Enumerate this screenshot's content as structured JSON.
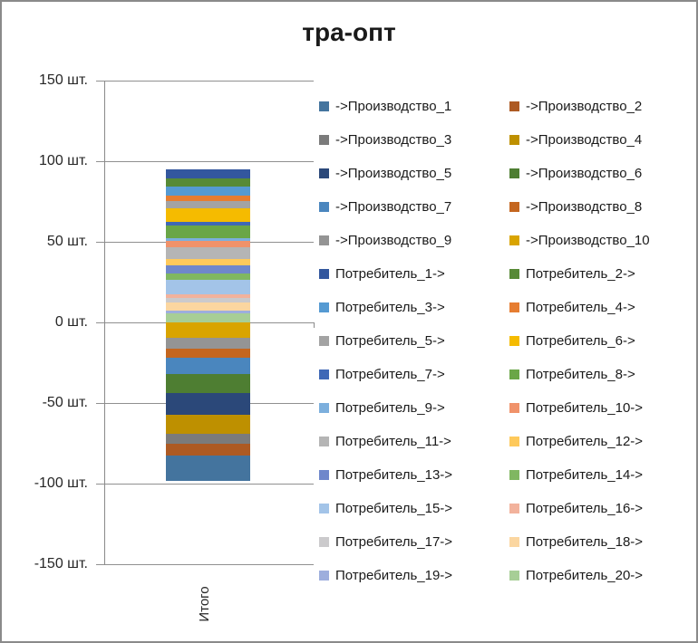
{
  "colors": {
    "border": "#8A8A8A",
    "gridline": "#909090",
    "axis": "#8A8A8A",
    "text": "#262626",
    "title_text": "#1A1A1A"
  },
  "y_axis": {
    "ticks": [
      "150 шт.",
      "100 шт.",
      "50 шт.",
      "0 шт.",
      "-50 шт.",
      "-100 шт.",
      "-150 шт."
    ]
  },
  "chart_data": {
    "type": "bar",
    "stacked": true,
    "title": "тра-опт",
    "categories": [
      "Итого"
    ],
    "xlabel": "",
    "ylabel": "",
    "value_unit": "шт.",
    "ylim": [
      -150,
      150
    ],
    "ytick_step": 50,
    "grid": true,
    "legend_position": "right",
    "legend_columns": 2,
    "series": [
      {
        "name": "->Производство_1",
        "color": "#44749E",
        "value": -16
      },
      {
        "name": "->Производство_2",
        "color": "#AD5A23",
        "value": -7
      },
      {
        "name": "->Производство_3",
        "color": "#7B7B7B",
        "value": -6.5
      },
      {
        "name": "->Производство_4",
        "color": "#BE9000",
        "value": -11.5
      },
      {
        "name": "->Производство_5",
        "color": "#2B4879",
        "value": -13.5
      },
      {
        "name": "->Производство_6",
        "color": "#4E7E32",
        "value": -12
      },
      {
        "name": "->Производство_7",
        "color": "#4A86BE",
        "value": -10
      },
      {
        "name": "->Производство_8",
        "color": "#C4661F",
        "value": -5.5
      },
      {
        "name": "->Производство_9",
        "color": "#949494",
        "value": -7
      },
      {
        "name": "->Производство_10",
        "color": "#D9A400",
        "value": -9.5
      },
      {
        "name": "Потребитель_1->",
        "color": "#33579E",
        "value": 5.5
      },
      {
        "name": "Потребитель_2->",
        "color": "#578A36",
        "value": 5.5
      },
      {
        "name": "Потребитель_3->",
        "color": "#559AD2",
        "value": 5.5
      },
      {
        "name": "Потребитель_4->",
        "color": "#E67D31",
        "value": 3.5
      },
      {
        "name": "Потребитель_5->",
        "color": "#A3A3A3",
        "value": 4
      },
      {
        "name": "Потребитель_6->",
        "color": "#F5BB00",
        "value": 8.5
      },
      {
        "name": "Потребитель_7->",
        "color": "#3F68B6",
        "value": 2.5
      },
      {
        "name": "Потребитель_8->",
        "color": "#6AA647",
        "value": 8
      },
      {
        "name": "Потребитель_9->",
        "color": "#7CAFDD",
        "value": 1.5
      },
      {
        "name": "Потребитель_10->",
        "color": "#F0926A",
        "value": 4
      },
      {
        "name": "Потребитель_11->",
        "color": "#B5B5B5",
        "value": 7
      },
      {
        "name": "Потребитель_12->",
        "color": "#FEC95B",
        "value": 4
      },
      {
        "name": "Потребитель_13->",
        "color": "#6F87CB",
        "value": 5.5
      },
      {
        "name": "Потребитель_14->",
        "color": "#80B761",
        "value": 3.5
      },
      {
        "name": "Потребитель_15->",
        "color": "#A3C4E8",
        "value": 9
      },
      {
        "name": "Потребитель_16->",
        "color": "#F2B29C",
        "value": 2.5
      },
      {
        "name": "Потребитель_17->",
        "color": "#CBCACC",
        "value": 3
      },
      {
        "name": "Потребитель_18->",
        "color": "#FBD6A0",
        "value": 5
      },
      {
        "name": "Потребитель_19->",
        "color": "#9DAEDD",
        "value": 1.5
      },
      {
        "name": "Потребитель_20->",
        "color": "#A7CE96",
        "value": 5.5
      }
    ]
  }
}
